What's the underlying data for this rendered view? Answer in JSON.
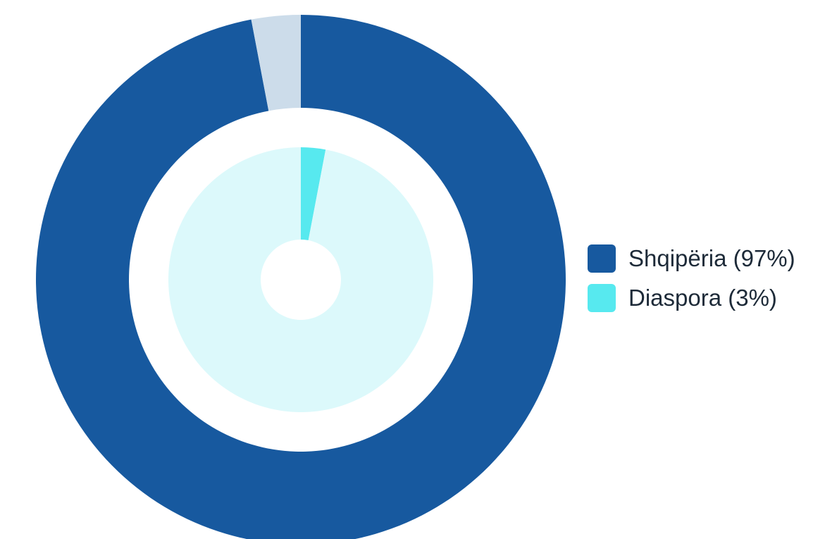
{
  "chart_data": {
    "type": "pie",
    "rings": [
      {
        "ring": "outer",
        "slices": [
          {
            "label": "Shqipëria",
            "value": 97,
            "color": "#17599f"
          },
          {
            "label": "Diaspora",
            "value": 3,
            "color": "#ccdcea"
          }
        ]
      },
      {
        "ring": "inner",
        "slices": [
          {
            "label": "Diaspora",
            "value": 3,
            "color": "#57e9ef"
          },
          {
            "label": "Shqipëria",
            "value": 97,
            "color": "#dcf9fb"
          }
        ]
      }
    ],
    "legend": {
      "position": "right",
      "items": [
        {
          "label": "Shqipëria (97%)",
          "color": "#17599f"
        },
        {
          "label": "Diaspora (3%)",
          "color": "#57e9ef"
        }
      ]
    }
  }
}
